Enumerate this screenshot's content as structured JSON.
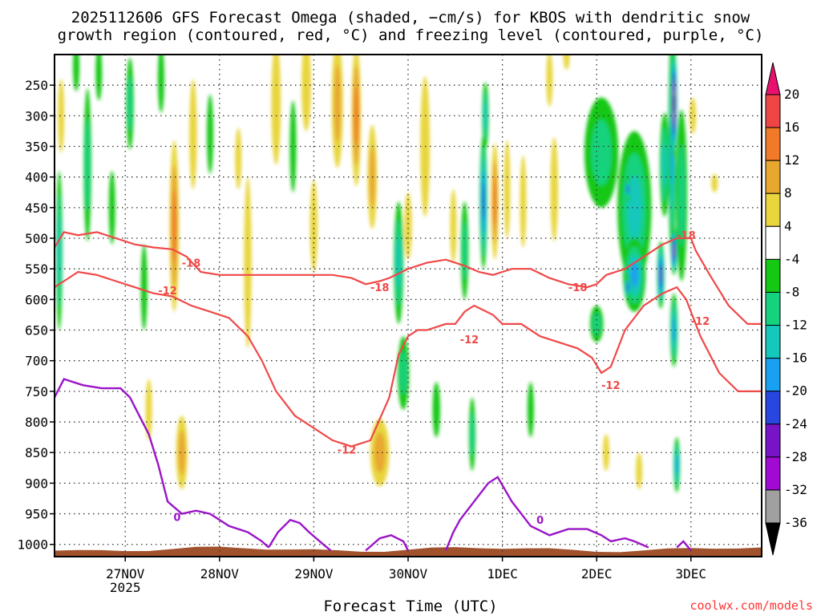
{
  "chart_data": {
    "type": "heatmap",
    "title_line1": "2025112606 GFS Forecast Omega (shaded, −cm/s) for KBOS with dendritic snow",
    "title_line2": "growth region (contoured, red, °C) and freezing level (contoured, purple, °C)",
    "xlabel": "Forecast Time (UTC)",
    "credit": "coolwx.com/models",
    "x_ticks": [
      {
        "label": "27NOV",
        "sub": "2025",
        "day": 1
      },
      {
        "label": "28NOV",
        "day": 2
      },
      {
        "label": "29NOV",
        "day": 3
      },
      {
        "label": "30NOV",
        "day": 4
      },
      {
        "label": "1DEC",
        "day": 5
      },
      {
        "label": "2DEC",
        "day": 6
      },
      {
        "label": "3DEC",
        "day": 7
      }
    ],
    "x_range_days": [
      0.25,
      7.75
    ],
    "y_ticks": [
      250,
      300,
      350,
      400,
      450,
      500,
      550,
      600,
      650,
      700,
      750,
      800,
      850,
      900,
      950,
      1000
    ],
    "y_range_hpa": [
      200,
      1020
    ],
    "colorbar": {
      "labels": [
        "20",
        "16",
        "12",
        "8",
        "4",
        "-4",
        "-8",
        "-12",
        "-16",
        "-20",
        "-24",
        "-28",
        "-32",
        "-36"
      ],
      "colors": [
        "#e8116e",
        "#f04545",
        "#f07a28",
        "#e8a830",
        "#e8d63c",
        "#ffffff",
        "#14c814",
        "#14d27d",
        "#14c8bb",
        "#1aa0f0",
        "#2846e0",
        "#7814c8",
        "#a00ad2",
        "#a0a0a0",
        "#000000"
      ],
      "bands": [
        {
          "lo": -4,
          "hi": 4,
          "color": "#ffffff"
        },
        {
          "lo": 4,
          "hi": 8,
          "color": "#e8d63c"
        },
        {
          "lo": 8,
          "hi": 12,
          "color": "#e8a830"
        },
        {
          "lo": 12,
          "hi": 16,
          "color": "#f07a28"
        },
        {
          "lo": 16,
          "hi": 20,
          "color": "#f04545"
        },
        {
          "lo": -8,
          "hi": -4,
          "color": "#14c814"
        },
        {
          "lo": -12,
          "hi": -8,
          "color": "#14d27d"
        },
        {
          "lo": -16,
          "hi": -12,
          "color": "#14c8bb"
        },
        {
          "lo": -20,
          "hi": -16,
          "color": "#1aa0f0"
        },
        {
          "lo": -24,
          "hi": -20,
          "color": "#2846e0"
        },
        {
          "lo": -28,
          "hi": -24,
          "color": "#7814c8"
        },
        {
          "lo": -32,
          "hi": -28,
          "color": "#a00ad2"
        },
        {
          "lo": -36,
          "hi": -32,
          "color": "#a0a0a0"
        },
        {
          "lo": -99,
          "hi": -36,
          "color": "#000000"
        }
      ]
    },
    "omega_features": [
      {
        "day": 0.3,
        "p": 520,
        "dd": 0.03,
        "dp": 260,
        "v": -12
      },
      {
        "day": 0.32,
        "p": 300,
        "dd": 0.03,
        "dp": 120,
        "v": 6
      },
      {
        "day": 0.48,
        "p": 220,
        "dd": 0.03,
        "dp": 80,
        "v": -6
      },
      {
        "day": 0.6,
        "p": 380,
        "dd": 0.04,
        "dp": 250,
        "v": -9
      },
      {
        "day": 0.72,
        "p": 230,
        "dd": 0.03,
        "dp": 90,
        "v": -7
      },
      {
        "day": 0.86,
        "p": 450,
        "dd": 0.03,
        "dp": 120,
        "v": -6
      },
      {
        "day": 1.05,
        "p": 280,
        "dd": 0.04,
        "dp": 150,
        "v": -8
      },
      {
        "day": 1.2,
        "p": 580,
        "dd": 0.03,
        "dp": 140,
        "v": -6
      },
      {
        "day": 1.25,
        "p": 780,
        "dd": 0.03,
        "dp": 100,
        "v": 6
      },
      {
        "day": 1.38,
        "p": 240,
        "dd": 0.03,
        "dp": 110,
        "v": -7
      },
      {
        "day": 1.52,
        "p": 480,
        "dd": 0.05,
        "dp": 280,
        "v": 13
      },
      {
        "day": 1.6,
        "p": 850,
        "dd": 0.06,
        "dp": 120,
        "v": 8
      },
      {
        "day": 1.72,
        "p": 330,
        "dd": 0.04,
        "dp": 180,
        "v": 5
      },
      {
        "day": 1.9,
        "p": 330,
        "dd": 0.03,
        "dp": 130,
        "v": -6
      },
      {
        "day": 2.2,
        "p": 370,
        "dd": 0.03,
        "dp": 100,
        "v": 6
      },
      {
        "day": 2.3,
        "p": 540,
        "dd": 0.04,
        "dp": 280,
        "v": 6
      },
      {
        "day": 2.6,
        "p": 280,
        "dd": 0.05,
        "dp": 200,
        "v": 7
      },
      {
        "day": 2.78,
        "p": 350,
        "dd": 0.03,
        "dp": 150,
        "v": -6
      },
      {
        "day": 2.92,
        "p": 250,
        "dd": 0.05,
        "dp": 150,
        "v": 6
      },
      {
        "day": 3.0,
        "p": 480,
        "dd": 0.04,
        "dp": 150,
        "v": 6
      },
      {
        "day": 3.25,
        "p": 280,
        "dd": 0.06,
        "dp": 210,
        "v": 10
      },
      {
        "day": 3.45,
        "p": 300,
        "dd": 0.05,
        "dp": 230,
        "v": 13
      },
      {
        "day": 3.62,
        "p": 400,
        "dd": 0.05,
        "dp": 170,
        "v": 8
      },
      {
        "day": 3.7,
        "p": 850,
        "dd": 0.1,
        "dp": 110,
        "v": 11
      },
      {
        "day": 3.9,
        "p": 540,
        "dd": 0.05,
        "dp": 200,
        "v": -14
      },
      {
        "day": 3.95,
        "p": 720,
        "dd": 0.06,
        "dp": 120,
        "v": -10
      },
      {
        "day": 4.0,
        "p": 480,
        "dd": 0.04,
        "dp": 110,
        "v": 6
      },
      {
        "day": 4.18,
        "p": 350,
        "dd": 0.05,
        "dp": 230,
        "v": 6
      },
      {
        "day": 4.3,
        "p": 780,
        "dd": 0.04,
        "dp": 90,
        "v": -7
      },
      {
        "day": 4.48,
        "p": 480,
        "dd": 0.03,
        "dp": 120,
        "v": 6
      },
      {
        "day": 4.6,
        "p": 520,
        "dd": 0.04,
        "dp": 160,
        "v": -10
      },
      {
        "day": 4.68,
        "p": 820,
        "dd": 0.03,
        "dp": 120,
        "v": -8
      },
      {
        "day": 4.8,
        "p": 440,
        "dd": 0.04,
        "dp": 220,
        "v": -22
      },
      {
        "day": 4.82,
        "p": 300,
        "dd": 0.03,
        "dp": 110,
        "v": -13
      },
      {
        "day": 4.92,
        "p": 440,
        "dd": 0.04,
        "dp": 190,
        "v": 12
      },
      {
        "day": 5.05,
        "p": 420,
        "dd": 0.03,
        "dp": 160,
        "v": 6
      },
      {
        "day": 5.22,
        "p": 440,
        "dd": 0.03,
        "dp": 150,
        "v": 5
      },
      {
        "day": 5.3,
        "p": 780,
        "dd": 0.03,
        "dp": 90,
        "v": -7
      },
      {
        "day": 5.5,
        "p": 240,
        "dd": 0.03,
        "dp": 90,
        "v": 5
      },
      {
        "day": 5.55,
        "p": 420,
        "dd": 0.04,
        "dp": 170,
        "v": 6
      },
      {
        "day": 5.68,
        "p": 200,
        "dd": 0.03,
        "dp": 50,
        "v": 6
      },
      {
        "day": 6.05,
        "p": 360,
        "dd": 0.18,
        "dp": 180,
        "v": -10
      },
      {
        "day": 6.0,
        "p": 640,
        "dd": 0.07,
        "dp": 60,
        "v": -8
      },
      {
        "day": 6.1,
        "p": 850,
        "dd": 0.03,
        "dp": 60,
        "v": 6
      },
      {
        "day": 6.4,
        "p": 450,
        "dd": 0.18,
        "dp": 250,
        "v": -12
      },
      {
        "day": 6.4,
        "p": 560,
        "dd": 0.12,
        "dp": 120,
        "v": -16
      },
      {
        "day": 6.33,
        "p": 420,
        "dd": 0.03,
        "dp": 40,
        "v": -22
      },
      {
        "day": 6.33,
        "p": 580,
        "dd": 0.03,
        "dp": 40,
        "v": -22
      },
      {
        "day": 6.45,
        "p": 880,
        "dd": 0.02,
        "dp": 60,
        "v": 5
      },
      {
        "day": 6.68,
        "p": 560,
        "dd": 0.04,
        "dp": 110,
        "v": -26
      },
      {
        "day": 6.72,
        "p": 380,
        "dd": 0.05,
        "dp": 170,
        "v": -14
      },
      {
        "day": 6.8,
        "p": 350,
        "dd": 0.04,
        "dp": 380,
        "v": -18
      },
      {
        "day": 6.82,
        "p": 280,
        "dd": 0.03,
        "dp": 180,
        "v": -40
      },
      {
        "day": 6.82,
        "p": 520,
        "dd": 0.03,
        "dp": 80,
        "v": -30
      },
      {
        "day": 6.82,
        "p": 650,
        "dd": 0.04,
        "dp": 120,
        "v": -16
      },
      {
        "day": 6.85,
        "p": 870,
        "dd": 0.03,
        "dp": 90,
        "v": -16
      },
      {
        "day": 6.9,
        "p": 430,
        "dd": 0.06,
        "dp": 280,
        "v": -10
      },
      {
        "day": 7.02,
        "p": 300,
        "dd": 0.03,
        "dp": 60,
        "v": 5
      },
      {
        "day": 7.25,
        "p": 410,
        "dd": 0.03,
        "dp": 30,
        "v": 5
      }
    ],
    "dendritic_lines": [
      {
        "label": "-18",
        "label_at": [
          {
            "day": 1.7,
            "p": 540
          },
          {
            "day": 3.7,
            "p": 580
          },
          {
            "day": 5.8,
            "p": 580
          },
          {
            "day": 6.95,
            "p": 495
          }
        ],
        "points": [
          [
            0.25,
            515
          ],
          [
            0.35,
            490
          ],
          [
            0.5,
            495
          ],
          [
            0.7,
            490
          ],
          [
            0.9,
            500
          ],
          [
            1.1,
            510
          ],
          [
            1.3,
            515
          ],
          [
            1.5,
            518
          ],
          [
            1.65,
            530
          ],
          [
            1.8,
            555
          ],
          [
            2.0,
            560
          ],
          [
            2.2,
            560
          ],
          [
            2.4,
            560
          ],
          [
            2.6,
            560
          ],
          [
            2.8,
            560
          ],
          [
            3.0,
            560
          ],
          [
            3.2,
            560
          ],
          [
            3.4,
            565
          ],
          [
            3.55,
            575
          ],
          [
            3.7,
            570
          ],
          [
            3.8,
            565
          ],
          [
            4.0,
            550
          ],
          [
            4.2,
            540
          ],
          [
            4.4,
            535
          ],
          [
            4.6,
            545
          ],
          [
            4.75,
            555
          ],
          [
            4.9,
            560
          ],
          [
            5.0,
            555
          ],
          [
            5.1,
            550
          ],
          [
            5.3,
            550
          ],
          [
            5.5,
            565
          ],
          [
            5.7,
            575
          ],
          [
            5.9,
            580
          ],
          [
            6.0,
            575
          ],
          [
            6.1,
            560
          ],
          [
            6.3,
            550
          ],
          [
            6.5,
            530
          ],
          [
            6.7,
            510
          ],
          [
            6.85,
            500
          ],
          [
            7.0,
            500
          ],
          [
            7.05,
            520
          ],
          [
            7.2,
            560
          ],
          [
            7.4,
            610
          ],
          [
            7.6,
            640
          ],
          [
            7.75,
            640
          ]
        ]
      },
      {
        "label": "-12",
        "label_at": [
          {
            "day": 1.45,
            "p": 585
          },
          {
            "day": 3.35,
            "p": 845
          },
          {
            "day": 4.65,
            "p": 665
          },
          {
            "day": 6.15,
            "p": 740
          },
          {
            "day": 7.1,
            "p": 635
          }
        ],
        "points": [
          [
            0.25,
            580
          ],
          [
            0.35,
            570
          ],
          [
            0.5,
            555
          ],
          [
            0.7,
            560
          ],
          [
            0.9,
            570
          ],
          [
            1.1,
            580
          ],
          [
            1.3,
            590
          ],
          [
            1.5,
            595
          ],
          [
            1.7,
            610
          ],
          [
            1.9,
            620
          ],
          [
            2.1,
            630
          ],
          [
            2.3,
            660
          ],
          [
            2.45,
            700
          ],
          [
            2.6,
            750
          ],
          [
            2.8,
            790
          ],
          [
            3.0,
            810
          ],
          [
            3.2,
            830
          ],
          [
            3.4,
            840
          ],
          [
            3.6,
            830
          ],
          [
            3.8,
            760
          ],
          [
            3.9,
            690
          ],
          [
            4.0,
            660
          ],
          [
            4.1,
            650
          ],
          [
            4.2,
            650
          ],
          [
            4.4,
            640
          ],
          [
            4.5,
            640
          ],
          [
            4.6,
            620
          ],
          [
            4.7,
            610
          ],
          [
            4.9,
            625
          ],
          [
            5.0,
            640
          ],
          [
            5.2,
            640
          ],
          [
            5.4,
            660
          ],
          [
            5.6,
            670
          ],
          [
            5.8,
            680
          ],
          [
            5.95,
            695
          ],
          [
            6.05,
            720
          ],
          [
            6.15,
            710
          ],
          [
            6.3,
            650
          ],
          [
            6.5,
            610
          ],
          [
            6.7,
            590
          ],
          [
            6.85,
            580
          ],
          [
            6.95,
            600
          ],
          [
            7.1,
            660
          ],
          [
            7.3,
            720
          ],
          [
            7.5,
            750
          ],
          [
            7.75,
            750
          ]
        ]
      }
    ],
    "freezing_level": {
      "label": "0",
      "label_at": [
        {
          "day": 1.55,
          "p": 955
        },
        {
          "day": 5.4,
          "p": 960
        }
      ],
      "segments": [
        [
          [
            0.25,
            760
          ],
          [
            0.35,
            730
          ],
          [
            0.55,
            740
          ],
          [
            0.75,
            745
          ],
          [
            0.95,
            745
          ],
          [
            1.05,
            760
          ],
          [
            1.15,
            790
          ],
          [
            1.25,
            820
          ],
          [
            1.35,
            870
          ],
          [
            1.45,
            930
          ],
          [
            1.6,
            950
          ],
          [
            1.75,
            945
          ],
          [
            1.9,
            950
          ],
          [
            2.1,
            970
          ],
          [
            2.3,
            980
          ],
          [
            2.45,
            995
          ],
          [
            2.52,
            1005
          ]
        ],
        [
          [
            2.52,
            1005
          ],
          [
            2.62,
            980
          ],
          [
            2.75,
            960
          ],
          [
            2.85,
            965
          ],
          [
            2.95,
            980
          ],
          [
            3.1,
            1000
          ],
          [
            3.18,
            1010
          ]
        ],
        [
          [
            3.55,
            1010
          ],
          [
            3.7,
            990
          ],
          [
            3.82,
            985
          ],
          [
            3.95,
            995
          ],
          [
            4.0,
            1010
          ]
        ],
        [
          [
            4.4,
            1010
          ],
          [
            4.48,
            980
          ],
          [
            4.55,
            960
          ],
          [
            4.7,
            930
          ],
          [
            4.85,
            900
          ],
          [
            4.95,
            890
          ],
          [
            5.1,
            930
          ],
          [
            5.3,
            970
          ],
          [
            5.5,
            985
          ],
          [
            5.7,
            975
          ],
          [
            5.9,
            975
          ],
          [
            6.05,
            985
          ],
          [
            6.15,
            995
          ],
          [
            6.3,
            990
          ],
          [
            6.4,
            995
          ],
          [
            6.55,
            1005
          ]
        ],
        [
          [
            6.85,
            1005
          ],
          [
            6.92,
            995
          ],
          [
            7.0,
            1010
          ]
        ]
      ]
    }
  }
}
